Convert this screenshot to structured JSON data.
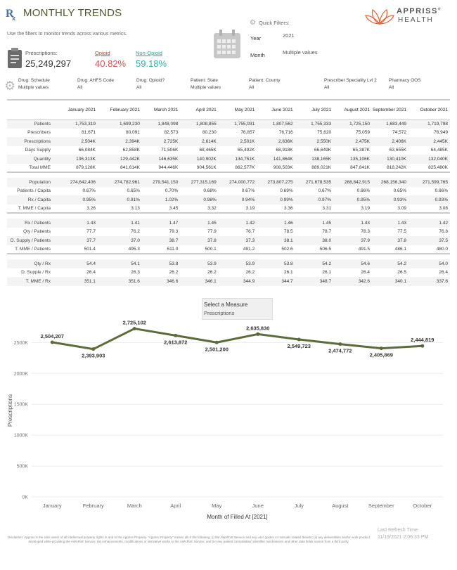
{
  "header": {
    "title": "MONTHLY TRENDS",
    "subtitle": "Use the filters to monitor trends across various metrics.",
    "logo_line1": "APPRISS",
    "logo_reg": "®",
    "logo_line2": "HEALTH"
  },
  "kpis": [
    {
      "label": "Prescriptions:",
      "value": "25,249,297"
    },
    {
      "label": "Opioid",
      "value": "40.82%"
    },
    {
      "label": "Non-Opioid",
      "value": "59.18%"
    }
  ],
  "quick_filters": {
    "label": "Quick Filters:",
    "year_label": "Year",
    "year_value": "2021",
    "month_label": "Month",
    "month_value": "Multiple values"
  },
  "filters": [
    {
      "label": "Drug: Schedule",
      "value": "Multiple values"
    },
    {
      "label": "Drug: AHFS Code",
      "value": "All"
    },
    {
      "label": "Drug: Opioid?",
      "value": "All"
    },
    {
      "label": "Patient: State",
      "value": "Multiple values"
    },
    {
      "label": "Patient: County",
      "value": "All"
    },
    {
      "label": "Prescriber Speciality Lvl 2",
      "value": "All"
    },
    {
      "label": "Pharmacy OOS",
      "value": "All"
    }
  ],
  "table": {
    "columns": [
      "January 2021",
      "February 2021",
      "March 2021",
      "April 2021",
      "May 2021",
      "June 2021",
      "July 2021",
      "August 2021",
      "September 2021",
      "October 2021"
    ],
    "groups": [
      [
        {
          "label": "Patients",
          "values": [
            "1,753,319",
            "1,699,230",
            "1,848,098",
            "1,808,855",
            "1,755,931",
            "1,807,562",
            "1,755,333",
            "1,725,150",
            "1,683,449",
            "1,719,798"
          ]
        },
        {
          "label": "Prescribers",
          "values": [
            "81,671",
            "80,091",
            "82,573",
            "80,230",
            "76,857",
            "76,716",
            "75,620",
            "75,059",
            "74,572",
            "76,949"
          ]
        },
        {
          "label": "Prescriptions",
          "values": [
            "2,504K",
            "2,394K",
            "2,725K",
            "2,614K",
            "2,501K",
            "2,636K",
            "2,550K",
            "2,475K",
            "2,406K",
            "2,445K"
          ]
        },
        {
          "label": "Days Supply",
          "values": [
            "66,084K",
            "62,858K",
            "71,506K",
            "68,465K",
            "65,492K",
            "68,918K",
            "66,649K",
            "65,387K",
            "63,655K",
            "64,485K"
          ]
        },
        {
          "label": "Quantity",
          "values": [
            "136,313K",
            "129,442K",
            "146,635K",
            "140,902K",
            "134,751K",
            "141,864K",
            "138,165K",
            "135,106K",
            "130,410K",
            "132,040K"
          ]
        },
        {
          "label": "Total MME",
          "values": [
            "879,128K",
            "841,614K",
            "944,446K",
            "904,561K",
            "862,577K",
            "908,503K",
            "889,021K",
            "847,841K",
            "818,242K",
            "825,480K"
          ]
        }
      ],
      [
        {
          "label": "Population",
          "values": [
            "274,642,406",
            "274,782,961",
            "279,541,150",
            "277,315,169",
            "274,000,772",
            "273,807,275",
            "271,678,535",
            "268,842,915",
            "268,156,340",
            "271,599,765"
          ]
        },
        {
          "label": "Patients / Capita",
          "values": [
            "0.67%",
            "0.65%",
            "0.70%",
            "0.68%",
            "0.67%",
            "0.69%",
            "0.67%",
            "0.66%",
            "0.65%",
            "0.66%"
          ]
        },
        {
          "label": "Rx / Capita",
          "values": [
            "0.95%",
            "0.91%",
            "1.02%",
            "0.98%",
            "0.94%",
            "0.99%",
            "0.97%",
            "0.95%",
            "0.93%",
            "0.93%"
          ]
        },
        {
          "label": "T. MME / Capita",
          "values": [
            "3.26",
            "3.13",
            "3.45",
            "3.32",
            "3.19",
            "3.36",
            "3.31",
            "3.19",
            "3.09",
            "3.08"
          ]
        }
      ],
      [
        {
          "label": "Rx / Patients",
          "values": [
            "1.43",
            "1.41",
            "1.47",
            "1.45",
            "1.42",
            "1.46",
            "1.45",
            "1.43",
            "1.43",
            "1.42"
          ]
        },
        {
          "label": "Qty / Patients",
          "values": [
            "77.7",
            "76.2",
            "79.3",
            "77.9",
            "76.7",
            "78.5",
            "78.7",
            "78.3",
            "77.5",
            "76.8"
          ]
        },
        {
          "label": "D. Supply / Patients",
          "values": [
            "37.7",
            "37.0",
            "38.7",
            "37.8",
            "37.3",
            "38.1",
            "38.0",
            "37.9",
            "37.8",
            "37.5"
          ]
        },
        {
          "label": "T. MME / Patients",
          "values": [
            "501.4",
            "495.3",
            "511.0",
            "500.1",
            "491.2",
            "502.6",
            "506.5",
            "491.5",
            "486.1",
            "480.0"
          ]
        }
      ],
      [
        {
          "label": "Qty / Rx",
          "values": [
            "54.4",
            "54.1",
            "53.8",
            "53.9",
            "53.9",
            "53.8",
            "54.2",
            "54.6",
            "54.2",
            "54.0"
          ]
        },
        {
          "label": "D. Supple / Rx",
          "values": [
            "26.4",
            "26.3",
            "26.2",
            "26.2",
            "26.2",
            "26.1",
            "26.1",
            "26.4",
            "26.5",
            "26.4"
          ]
        },
        {
          "label": "T. MME / Rx",
          "values": [
            "351.1",
            "351.6",
            "346.6",
            "346.1",
            "344.9",
            "344.7",
            "348.7",
            "342.6",
            "340.1",
            "337.6"
          ]
        }
      ]
    ]
  },
  "measure": {
    "title": "Select a Measure",
    "value": "Prescriptions"
  },
  "chart_data": {
    "type": "line",
    "categories": [
      "January",
      "February",
      "March",
      "April",
      "May",
      "June",
      "July",
      "August",
      "September",
      "October"
    ],
    "values": [
      2504207,
      2393903,
      2725102,
      2613872,
      2501200,
      2635830,
      2549723,
      2474772,
      2405869,
      2444819
    ],
    "data_labels": [
      "2,504,207",
      "2,393,903",
      "2,725,102",
      "2,613,872",
      "2,501,200",
      "2,635,830",
      "2,549,723",
      "2,474,772",
      "2,405,869",
      "2,444,819"
    ],
    "ylabel": "Prescriptions",
    "xlabel": "Month of Filled At [2021]",
    "ylim": [
      0,
      2800000
    ],
    "yticks": [
      0,
      500000,
      1000000,
      1500000,
      2000000,
      2500000
    ],
    "ytick_labels": [
      "0K",
      "500K",
      "1000K",
      "1500K",
      "2000K",
      "2500K"
    ],
    "color": "#5c6b3a"
  },
  "footer": {
    "disclaimer": "Disclaimer: Appriss is the sole owner of all intellectual property rights in and to the Appriss Property. \"Appriss Property\" means all of the following: (i) the AWARxE Service and any user guides or manuals related thereto; (ii) any deliverables and/or work product developed while providing the AWARxE Service; (iii) enhancements, modifications or derivative works to the AWARxE Service; and (iv) any patient consolidation identifier mechanisms and other data fields source from a third party.",
    "refresh_label": "Last Refresh Time:",
    "refresh_time": "11/19/2021 2:06:33 PM"
  }
}
